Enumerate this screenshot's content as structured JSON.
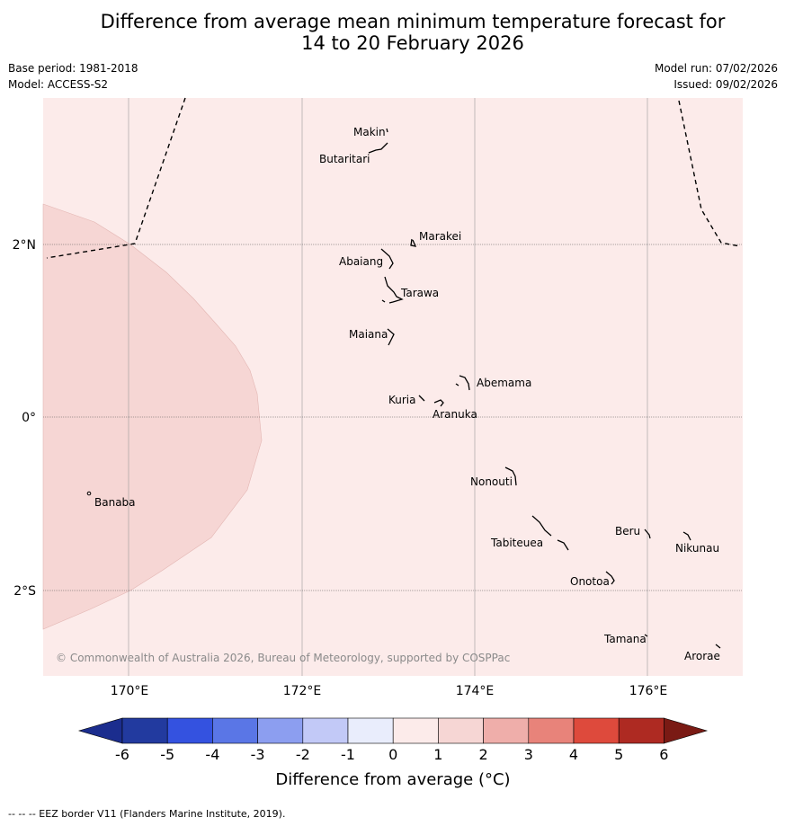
{
  "title_line1": "Difference from average mean minimum temperature forecast for",
  "title_line2": "14 to 20 February 2026",
  "base_period": "Base period: 1981-2018",
  "model": "Model: ACCESS-S2",
  "model_run": "Model run: 07/02/2026",
  "issued": "Issued: 09/02/2026",
  "lon_labels": [
    "170°E",
    "172°E",
    "174°E",
    "176°E"
  ],
  "lat_labels": [
    "2°N",
    "0°",
    "2°S"
  ],
  "places": {
    "makin": "Makin",
    "butaritari": "Butaritari",
    "marakei": "Marakei",
    "abaiang": "Abaiang",
    "tarawa": "Tarawa",
    "maiana": "Maiana",
    "abemama": "Abemama",
    "kuria": "Kuria",
    "aranuka": "Aranuka",
    "nonouti": "Nonouti",
    "banaba": "Banaba",
    "tabiteuea": "Tabiteuea",
    "beru": "Beru",
    "nikunau": "Nikunau",
    "onotoa": "Onotoa",
    "tamana": "Tamana",
    "arorae": "Arorae"
  },
  "copyright": "© Commonwealth of Australia 2026, Bureau of Meteorology, supported by COSPPac",
  "colorbar": {
    "ticks": [
      "-6",
      "-5",
      "-4",
      "-3",
      "-2",
      "-1",
      "0",
      "1",
      "2",
      "3",
      "4",
      "5",
      "6"
    ],
    "colors": [
      "#1b2d8e",
      "#223a9f",
      "#3452e0",
      "#5a76e6",
      "#8c9ef0",
      "#c2c9f7",
      "#e9edfc",
      "#fcebea",
      "#f6d6d4",
      "#efaeaa",
      "#e8837a",
      "#de4a3c",
      "#ae2a22",
      "#7a1a14"
    ],
    "label": "Difference from average (°C)"
  },
  "fill_colors": {
    "background": "#fcebea",
    "anomaly_1_2": "#f6d6d4"
  },
  "footer": "--  --  -- EEZ border V11 (Flanders Marine Institute, 2019)."
}
